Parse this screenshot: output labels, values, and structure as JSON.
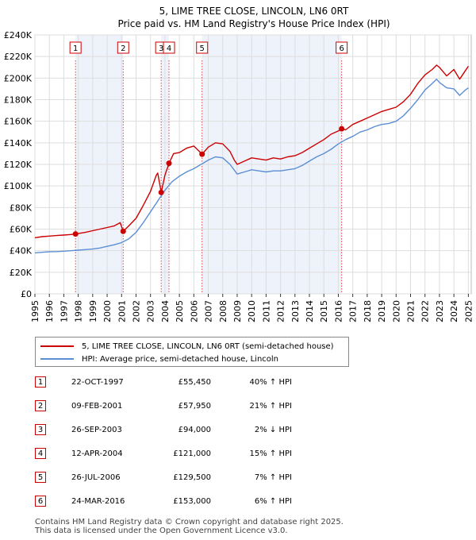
{
  "chart_data": {
    "type": "line",
    "title": "5, LIME TREE CLOSE, LINCOLN, LN6 0RT",
    "subtitle": "Price paid vs. HM Land Registry's House Price Index (HPI)",
    "y_ticks": [
      0,
      20000,
      40000,
      60000,
      80000,
      100000,
      120000,
      140000,
      160000,
      180000,
      200000,
      220000,
      240000
    ],
    "y_tick_labels": [
      "£0",
      "£20K",
      "£40K",
      "£60K",
      "£80K",
      "£100K",
      "£120K",
      "£140K",
      "£160K",
      "£180K",
      "£200K",
      "£220K",
      "£240K"
    ],
    "ylim": [
      0,
      240000
    ],
    "xlim": [
      1995,
      2025.2
    ],
    "x_ticks": [
      1995,
      1996,
      1997,
      1998,
      1999,
      2000,
      2001,
      2002,
      2003,
      2004,
      2005,
      2006,
      2007,
      2008,
      2009,
      2010,
      2011,
      2012,
      2013,
      2014,
      2015,
      2016,
      2017,
      2018,
      2019,
      2020,
      2021,
      2022,
      2023,
      2024,
      2025
    ],
    "x_tick_labels": [
      "1995",
      "1996",
      "1997",
      "1998",
      "1999",
      "2000",
      "2001",
      "2002",
      "2003",
      "2004",
      "2005",
      "2006",
      "2007",
      "2008",
      "2009",
      "2010",
      "2011",
      "2012",
      "2013",
      "2014",
      "2015",
      "2016",
      "2017",
      "2018",
      "2019",
      "2020",
      "2021",
      "2022",
      "2023",
      "2024",
      "2025"
    ],
    "series": [
      {
        "name": "5, LIME TREE CLOSE, LINCOLN, LN6 0RT (semi-detached house)",
        "color": "#cc0000",
        "x": [
          1995.0,
          1995.5,
          1996.0,
          1996.5,
          1997.0,
          1997.5,
          1997.8,
          1998.5,
          1999.0,
          1999.5,
          2000.0,
          2000.5,
          2000.9,
          2001.11,
          2001.5,
          2002.0,
          2002.5,
          2003.0,
          2003.4,
          2003.5,
          2003.74,
          2004.0,
          2004.28,
          2004.6,
          2005.0,
          2005.5,
          2006.0,
          2006.3,
          2006.57,
          2007.0,
          2007.5,
          2008.0,
          2008.5,
          2008.8,
          2009.0,
          2009.5,
          2010.0,
          2010.5,
          2011.0,
          2011.5,
          2012.0,
          2012.5,
          2013.0,
          2013.5,
          2014.0,
          2014.5,
          2015.0,
          2015.5,
          2016.0,
          2016.23,
          2016.5,
          2017.0,
          2017.5,
          2018.0,
          2018.5,
          2019.0,
          2019.5,
          2020.0,
          2020.5,
          2021.0,
          2021.5,
          2022.0,
          2022.5,
          2022.8,
          2023.0,
          2023.5,
          2024.0,
          2024.4,
          2024.8,
          2025.0
        ],
        "y": [
          52000,
          53000,
          53500,
          54000,
          54500,
          55000,
          55450,
          57000,
          58500,
          60000,
          61500,
          63000,
          66000,
          57950,
          63000,
          70000,
          82000,
          95000,
          110000,
          112000,
          94000,
          110000,
          121000,
          130000,
          131000,
          135000,
          137000,
          133000,
          129500,
          136000,
          140000,
          139000,
          132000,
          124000,
          120000,
          123000,
          126000,
          125000,
          124000,
          126000,
          125000,
          127000,
          128000,
          131000,
          135000,
          139000,
          143000,
          148000,
          151000,
          153000,
          152000,
          157000,
          160000,
          163000,
          166000,
          169000,
          171000,
          173000,
          178000,
          185000,
          195000,
          203000,
          208000,
          212000,
          210000,
          202000,
          208000,
          199000,
          207000,
          211000
        ]
      },
      {
        "name": "HPI: Average price, semi-detached house, Lincoln",
        "color": "#5b8fd4",
        "x": [
          1995.0,
          1995.5,
          1996.0,
          1996.5,
          1997.0,
          1997.5,
          1998.0,
          1998.5,
          1999.0,
          1999.5,
          2000.0,
          2000.5,
          2001.0,
          2001.5,
          2002.0,
          2002.5,
          2003.0,
          2003.5,
          2004.0,
          2004.5,
          2005.0,
          2005.5,
          2006.0,
          2006.5,
          2007.0,
          2007.5,
          2008.0,
          2008.5,
          2009.0,
          2009.5,
          2010.0,
          2010.5,
          2011.0,
          2011.5,
          2012.0,
          2012.5,
          2013.0,
          2013.5,
          2014.0,
          2014.5,
          2015.0,
          2015.5,
          2016.0,
          2016.5,
          2017.0,
          2017.5,
          2018.0,
          2018.5,
          2019.0,
          2019.5,
          2020.0,
          2020.5,
          2021.0,
          2021.5,
          2022.0,
          2022.5,
          2022.8,
          2023.0,
          2023.5,
          2024.0,
          2024.4,
          2024.8,
          2025.0
        ],
        "y": [
          38000,
          38500,
          39000,
          39200,
          39500,
          40000,
          40500,
          41000,
          41500,
          42500,
          44000,
          45500,
          47500,
          51000,
          57000,
          66000,
          76000,
          86000,
          96000,
          104000,
          109000,
          113000,
          116000,
          120000,
          124000,
          127000,
          126000,
          120000,
          111000,
          113000,
          115000,
          114000,
          113000,
          114000,
          114000,
          115000,
          116000,
          119000,
          123000,
          127000,
          130000,
          134000,
          139000,
          143000,
          146000,
          150000,
          152000,
          155000,
          157000,
          158000,
          160000,
          165000,
          172000,
          180000,
          189000,
          195000,
          199000,
          196000,
          191000,
          190000,
          184000,
          189000,
          191000
        ]
      }
    ],
    "sales": [
      {
        "label": "1",
        "x": 1997.81,
        "y": 55450
      },
      {
        "label": "2",
        "x": 2001.11,
        "y": 57950
      },
      {
        "label": "3",
        "x": 2003.74,
        "y": 94000
      },
      {
        "label": "4",
        "x": 2004.28,
        "y": 121000
      },
      {
        "label": "5",
        "x": 2006.57,
        "y": 129500
      },
      {
        "label": "6",
        "x": 2016.23,
        "y": 153000
      }
    ]
  },
  "legend": {
    "property_label": "5, LIME TREE CLOSE, LINCOLN, LN6 0RT (semi-detached house)",
    "hpi_label": "HPI: Average price, semi-detached house, Lincoln"
  },
  "transactions": [
    {
      "num": "1",
      "date": "22-OCT-1997",
      "price": "£55,450",
      "hpi": "40% ↑ HPI"
    },
    {
      "num": "2",
      "date": "09-FEB-2001",
      "price": "£57,950",
      "hpi": "21% ↑ HPI"
    },
    {
      "num": "3",
      "date": "26-SEP-2003",
      "price": "£94,000",
      "hpi": "2% ↓ HPI"
    },
    {
      "num": "4",
      "date": "12-APR-2004",
      "price": "£121,000",
      "hpi": "15% ↑ HPI"
    },
    {
      "num": "5",
      "date": "26-JUL-2006",
      "price": "£129,500",
      "hpi": "7% ↑ HPI"
    },
    {
      "num": "6",
      "date": "24-MAR-2016",
      "price": "£153,000",
      "hpi": "6% ↑ HPI"
    }
  ],
  "footer": {
    "line1": "Contains HM Land Registry data © Crown copyright and database right 2025.",
    "line2": "This data is licensed under the Open Government Licence v3.0."
  }
}
